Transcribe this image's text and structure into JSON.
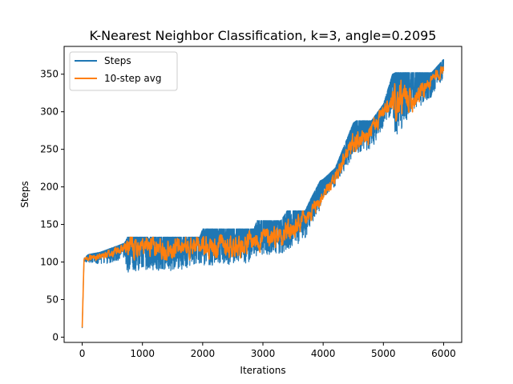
{
  "chart_data": {
    "type": "line",
    "title": "K-Nearest Neighbor Classification, k=3, angle=0.2095",
    "xlabel": "Iterations",
    "ylabel": "Steps",
    "xlim": [
      -300,
      6300
    ],
    "ylim": [
      -7,
      387
    ],
    "xticks": [
      0,
      1000,
      2000,
      3000,
      4000,
      5000,
      6000
    ],
    "yticks": [
      0,
      50,
      100,
      150,
      200,
      250,
      300,
      350
    ],
    "grid": false,
    "legend_position": "top-left",
    "series": [
      {
        "name": "Steps",
        "color": "#1f77b4",
        "description_points": {
          "x": [
            0,
            30,
            100,
            300,
            700,
            750,
            1000,
            1500,
            1950,
            2000,
            2500,
            2850,
            2900,
            3300,
            3400,
            3700,
            3800,
            3950,
            4000,
            4200,
            4500,
            4550,
            4800,
            5000,
            5150,
            5200,
            5500,
            5800,
            6000
          ],
          "upper": [
            12,
            105,
            110,
            113,
            125,
            133,
            133,
            133,
            133,
            144,
            144,
            144,
            155,
            155,
            168,
            168,
            185,
            208,
            210,
            225,
            285,
            288,
            288,
            310,
            350,
            352,
            352,
            352,
            370
          ],
          "lower": [
            12,
            100,
            100,
            95,
            105,
            85,
            90,
            88,
            95,
            96,
            95,
            100,
            108,
            110,
            115,
            130,
            150,
            170,
            185,
            200,
            240,
            245,
            250,
            280,
            300,
            265,
            300,
            320,
            345
          ]
        }
      },
      {
        "name": "10-step avg",
        "color": "#ff7f0e",
        "trend": {
          "x": [
            0,
            30,
            100,
            300,
            500,
            700,
            1000,
            1500,
            2000,
            2500,
            3000,
            3300,
            3500,
            3800,
            4000,
            4200,
            4500,
            4700,
            5000,
            5200,
            5500,
            5800,
            6000
          ],
          "y": [
            12,
            104,
            106,
            107,
            112,
            120,
            118,
            118,
            122,
            122,
            132,
            138,
            143,
            162,
            190,
            212,
            260,
            262,
            300,
            310,
            320,
            340,
            360
          ]
        }
      }
    ]
  }
}
